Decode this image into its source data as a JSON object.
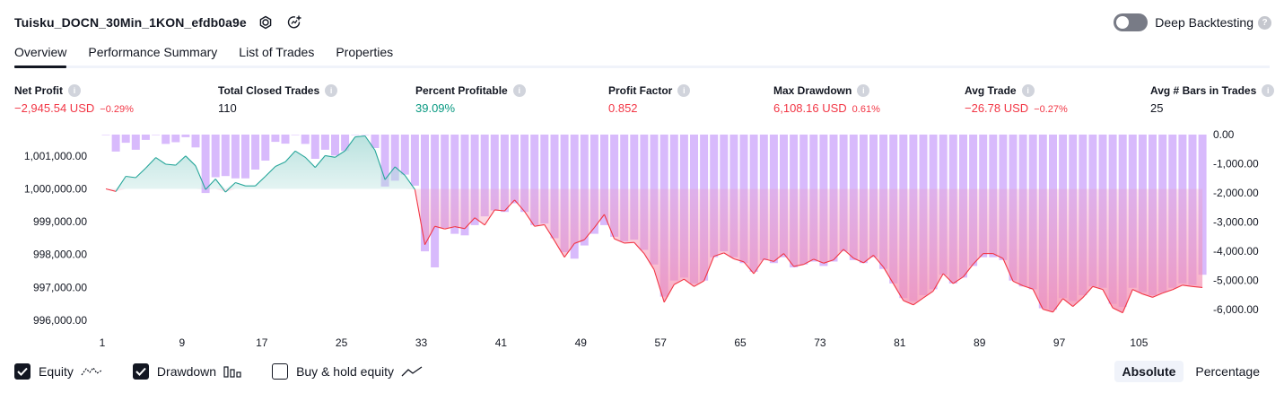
{
  "header": {
    "strategy_name": "Tuisku_DOCN_30Min_1KON_efdb0a9e",
    "deep_backtesting_label": "Deep Backtesting",
    "deep_backtesting_on": false,
    "help_glyph": "?",
    "icons": [
      "settings-icon",
      "snapshot-icon",
      "question-icon"
    ]
  },
  "tabs": [
    "Overview",
    "Performance Summary",
    "List of Trades",
    "Properties"
  ],
  "active_tab": "Overview",
  "metrics": [
    {
      "label": "Net Profit",
      "value": "−2,945.54 USD",
      "pct": "−0.29%",
      "tone": "neg"
    },
    {
      "label": "Total Closed Trades",
      "value": "110",
      "pct": "",
      "tone": "neutral"
    },
    {
      "label": "Percent Profitable",
      "value": "39.09%",
      "pct": "",
      "tone": "pos"
    },
    {
      "label": "Profit Factor",
      "value": "0.852",
      "pct": "",
      "tone": "neg"
    },
    {
      "label": "Max Drawdown",
      "value": "6,108.16 USD",
      "pct": "0.61%",
      "tone": "neg"
    },
    {
      "label": "Avg Trade",
      "value": "−26.78 USD",
      "pct": "−0.27%",
      "tone": "neg"
    },
    {
      "label": "Avg # Bars in Trades",
      "value": "25",
      "pct": "",
      "tone": "neutral"
    }
  ],
  "chart_data": {
    "type": "line",
    "x_ticks": [
      "1",
      "9",
      "17",
      "25",
      "33",
      "41",
      "49",
      "57",
      "65",
      "73",
      "81",
      "89",
      "97",
      "105"
    ],
    "left_axis": {
      "ticks": [
        "1,001,000.00",
        "1,000,000.00",
        "999,000.00",
        "998,000.00",
        "997,000.00",
        "996,000.00"
      ],
      "range": [
        995700,
        1001650
      ],
      "baseline": 1000000
    },
    "right_axis": {
      "ticks": [
        "0.00",
        "-1,000.00",
        "-2,000.00",
        "-3,000.00",
        "-4,000.00",
        "-5,000.00",
        "-6,000.00"
      ],
      "range": [
        -6700,
        0
      ]
    },
    "series": [
      {
        "kind": "equity",
        "colors": {
          "above": "#26a69a",
          "below": "#f23645",
          "fill_above": "#b2dfdb",
          "fill_below": "#f48fb1"
        },
        "values": [
          1000000,
          999920,
          1000380,
          1000340,
          1000630,
          1000950,
          1000750,
          1000720,
          1001000,
          1000700,
          999980,
          1000300,
          999900,
          1000190,
          1000090,
          1000090,
          1000380,
          1000680,
          1000820,
          1001150,
          1000960,
          1000650,
          1001010,
          1000960,
          1001160,
          1001580,
          1001610,
          1001170,
          1000280,
          1000670,
          1000410,
          999980,
          998300,
          998860,
          998780,
          998850,
          998790,
          999120,
          998900,
          999360,
          999330,
          999660,
          999310,
          998860,
          998910,
          998420,
          997920,
          998340,
          998450,
          998820,
          999220,
          998480,
          998350,
          998370,
          998030,
          997540,
          996550,
          997090,
          997250,
          997030,
          997200,
          997950,
          998050,
          997870,
          997780,
          997420,
          997870,
          997790,
          998030,
          997640,
          997700,
          997860,
          997740,
          997840,
          998160,
          997890,
          997750,
          997980,
          997620,
          997110,
          996600,
          996470,
          996680,
          996890,
          997420,
          997120,
          997320,
          997710,
          998030,
          998030,
          997880,
          997190,
          997050,
          996950,
          996340,
          996250,
          996660,
          996420,
          996690,
          997030,
          996940,
          996380,
          996230,
          996940,
          996800,
          996700,
          996830,
          996930,
          997070,
          997030,
          997000
        ]
      },
      {
        "kind": "drawdown",
        "color": "#d1aefc",
        "values": [
          0,
          -580,
          -280,
          -520,
          -180,
          0,
          -320,
          -260,
          -90,
          -440,
          -2000,
          -1460,
          -1420,
          -1500,
          -1500,
          -1200,
          -890,
          -250,
          -310,
          0,
          -320,
          -830,
          -520,
          -720,
          -560,
          0,
          0,
          -460,
          -1780,
          -1580,
          -1370,
          -1750,
          -4000,
          -4550,
          -3200,
          -3400,
          -3450,
          -3100,
          -2800,
          -2600,
          -2650,
          -2350,
          -2650,
          -3100,
          -3050,
          -3550,
          -4030,
          -4250,
          -3800,
          -3400,
          -3100,
          -3500,
          -3650,
          -3600,
          -3950,
          -4450,
          -5550,
          -5000,
          -4900,
          -5100,
          -5000,
          -4200,
          -4000,
          -4200,
          -4400,
          -4700,
          -4300,
          -4400,
          -4200,
          -4550,
          -4450,
          -4350,
          -4500,
          -4350,
          -4000,
          -4300,
          -4400,
          -4200,
          -4600,
          -5100,
          -5600,
          -5700,
          -5500,
          -5300,
          -4800,
          -5100,
          -4900,
          -4500,
          -4200,
          -4200,
          -4300,
          -5000,
          -5200,
          -5300,
          -5950,
          -6000,
          -5600,
          -5700,
          -5500,
          -5200,
          -5250,
          -5800,
          -5900,
          -5250,
          -5400,
          -5500,
          -5400,
          -5250,
          -5100,
          -5150,
          -4800
        ]
      }
    ]
  },
  "footer": {
    "checkboxes": [
      {
        "label": "Equity",
        "checked": true,
        "legend": "equity-legend-icon"
      },
      {
        "label": "Drawdown",
        "checked": true,
        "legend": "drawdown-legend-icon"
      },
      {
        "label": "Buy & hold equity",
        "checked": false,
        "legend": "buy-hold-legend-icon"
      }
    ],
    "modes": [
      "Absolute",
      "Percentage"
    ],
    "active_mode": "Absolute"
  }
}
